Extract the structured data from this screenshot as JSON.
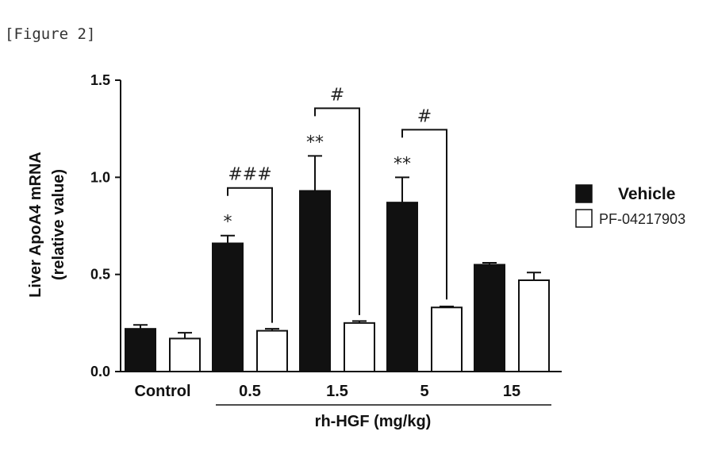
{
  "figure_caption": "[Figure 2]",
  "chart_data": {
    "type": "bar",
    "ylabel_line1": "Liver ApoA4 mRNA",
    "ylabel_line2": "(relative value)",
    "xlabel": "rh-HGF (mg/kg)",
    "ylim": [
      0,
      1.5
    ],
    "yticks": [
      "0.0",
      "0.5",
      "1.0",
      "1.5"
    ],
    "categories": [
      "Control",
      "0.5",
      "1.5",
      "5",
      "15"
    ],
    "series": [
      {
        "name": "Vehicle",
        "fill": "#111111",
        "values": [
          0.22,
          0.66,
          0.93,
          0.87,
          0.55
        ],
        "errors": [
          0.02,
          0.04,
          0.18,
          0.13,
          0.01
        ]
      },
      {
        "name": "PF-04217903",
        "fill": "#ffffff",
        "values": [
          0.17,
          0.21,
          0.25,
          0.33,
          0.47
        ],
        "errors": [
          0.03,
          0.01,
          0.01,
          0.005,
          0.04
        ]
      }
    ],
    "vehicle_marks": [
      "",
      "*",
      "**",
      "**",
      ""
    ],
    "comparisons": [
      {
        "category": "0.5",
        "label": "###"
      },
      {
        "category": "1.5",
        "label": "#"
      },
      {
        "category": "5",
        "label": "#"
      }
    ],
    "legend_position": "right"
  }
}
